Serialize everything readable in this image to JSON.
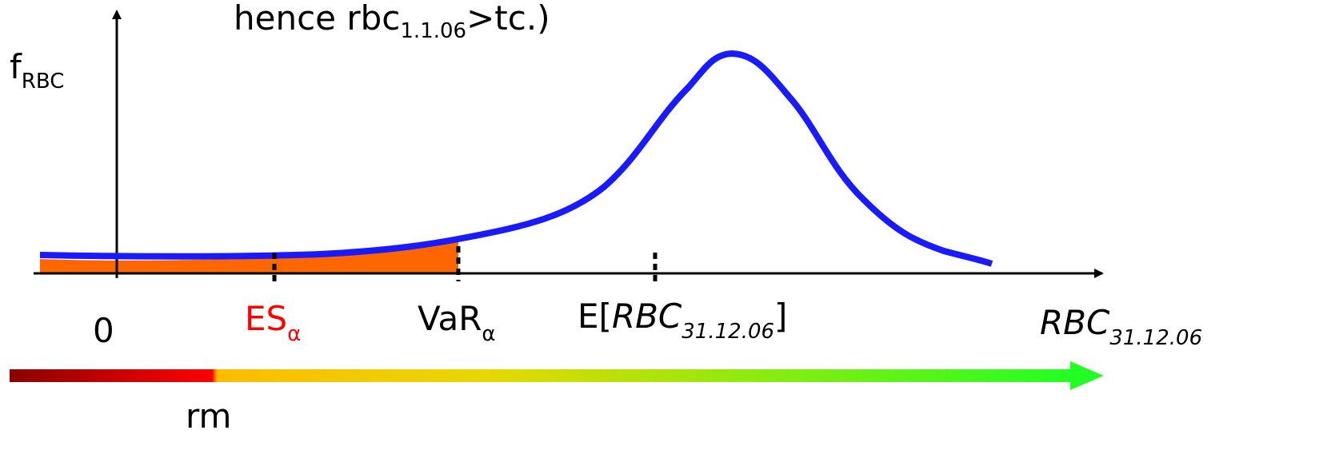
{
  "header": {
    "note_prefix": "hence rbc",
    "note_subscript": "1.1.06",
    "note_suffix": ">tc.)"
  },
  "y_axis": {
    "label_main": "f",
    "label_sub": "RBC"
  },
  "x_axis": {
    "label_main": "RBC",
    "label_sub": "31.12.06"
  },
  "markers": {
    "zero": "0",
    "es_main": "ES",
    "es_sub": "α",
    "var_main": "VaR",
    "var_sub": "α",
    "ev_prefix": "E[",
    "ev_main": "RBC",
    "ev_sub": "31.12.06",
    "ev_suffix": "]"
  },
  "risk_bar": {
    "label": "rm"
  },
  "colors": {
    "curve": "#1a1aff",
    "tail_fill": "#ff6600",
    "es_label": "#ff0000",
    "axis": "#000000",
    "gradient": [
      "#8b0000",
      "#ff0000",
      "#ffcc00",
      "#ccdd00",
      "#22ff22"
    ]
  }
}
